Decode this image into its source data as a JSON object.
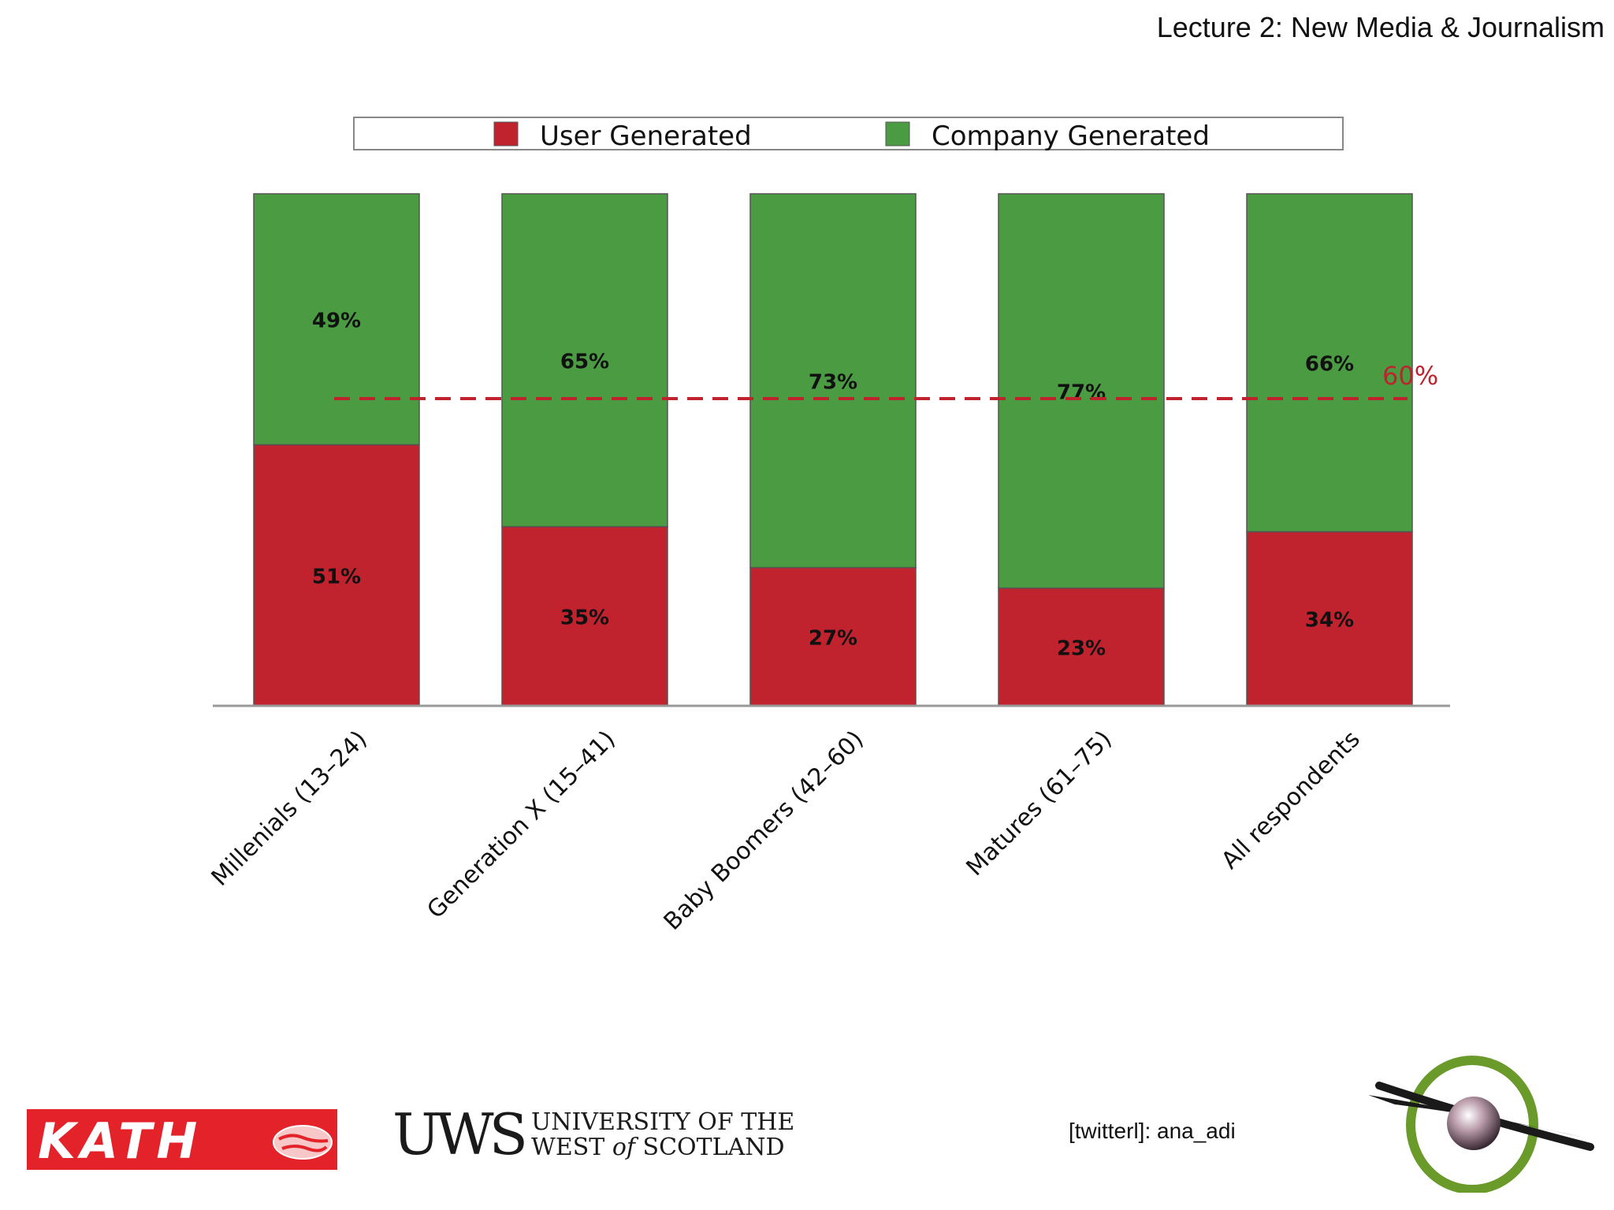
{
  "header": {
    "title": "Lecture 2: New Media & Journalism"
  },
  "chart_data": {
    "type": "bar",
    "stacked": true,
    "normalized_percent": true,
    "categories": [
      "Millenials (13–24)",
      "Generation X (15–41)",
      "Baby Boomers (42–60)",
      "Matures (61–75)",
      "All respondents"
    ],
    "series": [
      {
        "name": "User Generated",
        "color": "#c0222e",
        "values": [
          51,
          35,
          27,
          23,
          34
        ],
        "labels": [
          "51%",
          "35%",
          "27%",
          "23%",
          "34%"
        ]
      },
      {
        "name": "Company Generated",
        "color": "#4a9b42",
        "values": [
          49,
          65,
          73,
          77,
          66
        ],
        "labels": [
          "49%",
          "65%",
          "73%",
          "77%",
          "66%"
        ]
      }
    ],
    "ylim": [
      0,
      100
    ],
    "reference_line": {
      "value": 60,
      "label": "60%",
      "color": "#c0222e",
      "style": "dashed"
    },
    "legend": {
      "position": "top"
    },
    "grid": false
  },
  "footer": {
    "kath_logo": "KATH",
    "uws_mark": "UWS",
    "uws_line1": "UNIVERSITY OF THE",
    "uws_line2a": "WEST ",
    "uws_line2b": "of",
    "uws_line2c": " SCOTLAND",
    "twitter": "[twitterl]: ana_adi",
    "eye_icon": "eye-orbit-icon"
  }
}
